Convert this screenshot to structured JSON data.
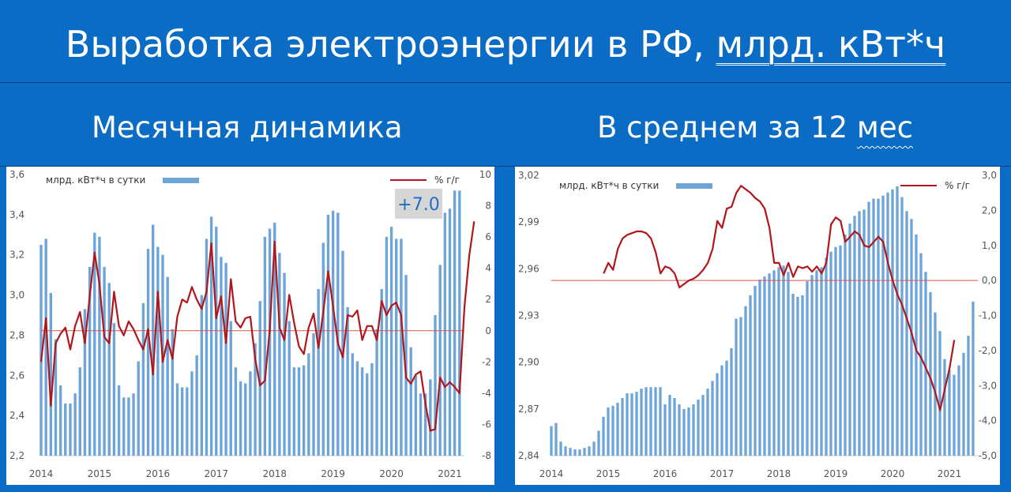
{
  "header": {
    "title_main": "Выработка электроэнергии в РФ, ",
    "title_units": "млрд. кВт*ч"
  },
  "subtitles": {
    "left": "Месячная динамика",
    "right_prefix": "В среднем за 12 ",
    "right_word": "мес"
  },
  "colors": {
    "background": "#0a6cc4",
    "bars": "#6fa4d6",
    "line": "#b0161c",
    "zero_line": "#d9534f",
    "badge_bg": "#d6d6d6",
    "badge_text": "#1f6fc2"
  },
  "chart_data": [
    {
      "type": "bar",
      "bar_legend": "млрд. кВт*ч в сутки",
      "line_legend": "% г/г",
      "annotation": "+7.0",
      "x_tick_labels": [
        "2014",
        "2015",
        "2016",
        "2017",
        "2018",
        "2019",
        "2020",
        "2021"
      ],
      "x_range": [
        2014.0,
        2021.25
      ],
      "ylim_left": [
        2.2,
        3.6
      ],
      "ylim_right": [
        -8,
        10
      ],
      "y_left_ticks": [
        "2,2",
        "2,4",
        "2,6",
        "2,8",
        "3,0",
        "3,2",
        "3,4",
        "3,6"
      ],
      "y_right_ticks": [
        "-8",
        "-6",
        "-4",
        "-2",
        "0",
        "2",
        "4",
        "6",
        "8",
        "10"
      ],
      "series": [
        {
          "kind": "bar",
          "x_start": 2014.0,
          "x_step": 0.08333,
          "values": [
            3.25,
            3.28,
            3.01,
            2.78,
            2.55,
            2.46,
            2.46,
            2.51,
            2.64,
            2.93,
            3.14,
            3.31,
            3.29,
            3.14,
            3.06,
            2.86,
            2.55,
            2.49,
            2.49,
            2.51,
            2.67,
            2.96,
            3.23,
            3.35,
            3.24,
            3.2,
            3.09,
            2.83,
            2.56,
            2.54,
            2.54,
            2.62,
            2.7,
            3.0,
            3.28,
            3.39,
            3.34,
            3.19,
            3.16,
            2.87,
            2.64,
            2.57,
            2.56,
            2.62,
            2.76,
            2.97,
            3.29,
            3.33,
            3.36,
            3.21,
            3.11,
            2.87,
            2.64,
            2.64,
            2.65,
            2.71,
            2.81,
            3.03,
            3.26,
            3.4,
            3.42,
            3.41,
            3.22,
            2.94,
            2.71,
            2.67,
            2.64,
            2.61,
            2.66,
            2.83,
            3.03,
            3.29,
            3.34,
            3.28,
            3.28,
            3.1,
            2.74,
            2.6,
            2.51,
            2.51,
            2.58,
            2.9,
            3.15,
            3.41,
            3.43,
            3.52,
            3.52
          ]
        },
        {
          "kind": "line",
          "axis": "right",
          "x_start": 2014.0,
          "x_step": 0.08333,
          "values": [
            -2.0,
            0.8,
            -4.8,
            -0.8,
            -0.2,
            0.2,
            -1.2,
            0.3,
            1.2,
            -0.8,
            2.2,
            5.0,
            3.0,
            -0.4,
            -0.8,
            2.5,
            0.3,
            -0.3,
            0.6,
            0.1,
            -0.6,
            -1.2,
            0.1,
            -2.8,
            2.5,
            -2.0,
            -0.6,
            -1.8,
            0.9,
            2.0,
            1.8,
            2.8,
            2.0,
            1.4,
            2.5,
            5.6,
            0.8,
            2.2,
            -0.8,
            3.3,
            0.6,
            0.2,
            0.8,
            0.9,
            -1.8,
            -3.5,
            -3.2,
            0.1,
            5.7,
            0.2,
            -0.6,
            2.3,
            0.5,
            -1.0,
            -1.5,
            0.2,
            1.1,
            -1.1,
            1.2,
            3.8,
            1.6,
            -0.8,
            -1.7,
            1.0,
            0.9,
            1.3,
            -0.6,
            0.3,
            0.3,
            -0.6,
            1.9,
            1.0,
            1.6,
            1.8,
            1.0,
            -3.0,
            -3.4,
            -2.8,
            -2.6,
            -4.7,
            -6.4,
            -6.3,
            -3.0,
            -3.6,
            -3.3,
            -3.6,
            -4.0,
            1.5,
            4.8,
            7.0
          ]
        }
      ]
    },
    {
      "type": "bar",
      "bar_legend": "млрд. кВт*ч в сутки",
      "line_legend": "% г/г",
      "x_tick_labels": [
        "2014",
        "2015",
        "2016",
        "2017",
        "2018",
        "2019",
        "2020",
        "2021"
      ],
      "x_range": [
        2014.0,
        2021.5
      ],
      "ylim_left": [
        2.84,
        3.02
      ],
      "ylim_right": [
        -5.0,
        3.0
      ],
      "y_left_ticks": [
        "2,84",
        "2,87",
        "2,90",
        "2,93",
        "2,96",
        "2,99",
        "3,02"
      ],
      "y_right_ticks": [
        "-5,0",
        "-4,0",
        "-3,0",
        "-2,0",
        "-1,0",
        "0,0",
        "1,0",
        "2,0",
        "3,0"
      ],
      "series": [
        {
          "kind": "bar",
          "x_start": 2014.0,
          "x_step": 0.08333,
          "values": [
            2.859,
            2.861,
            2.849,
            2.846,
            2.845,
            2.844,
            2.844,
            2.845,
            2.846,
            2.849,
            2.856,
            2.865,
            2.871,
            2.872,
            2.874,
            2.877,
            2.88,
            2.88,
            2.881,
            2.883,
            2.884,
            2.884,
            2.884,
            2.884,
            2.873,
            2.879,
            2.877,
            2.873,
            2.87,
            2.871,
            2.873,
            2.876,
            2.879,
            2.883,
            2.888,
            2.893,
            2.898,
            2.901,
            2.909,
            2.928,
            2.929,
            2.936,
            2.943,
            2.949,
            2.953,
            2.955,
            2.957,
            2.959,
            2.961,
            2.962,
            2.958,
            2.944,
            2.942,
            2.943,
            2.952,
            2.956,
            2.959,
            2.961,
            2.967,
            2.971,
            2.974,
            2.975,
            2.982,
            2.989,
            2.994,
            2.997,
            2.998,
            3.003,
            3.005,
            3.005,
            3.007,
            3.009,
            3.011,
            3.013,
            3.006,
            2.997,
            2.992,
            2.982,
            2.97,
            2.958,
            2.945,
            2.932,
            2.92,
            2.902,
            2.895,
            2.892,
            2.898,
            2.906,
            2.917,
            2.939
          ]
        },
        {
          "kind": "line",
          "axis": "right",
          "x_start": 2014.92,
          "x_step": 0.08333,
          "values": [
            0.2,
            0.5,
            0.3,
            0.9,
            1.2,
            1.3,
            1.35,
            1.4,
            1.4,
            1.35,
            1.2,
            0.8,
            0.2,
            0.4,
            0.35,
            0.2,
            -0.2,
            -0.1,
            0.0,
            0.05,
            0.15,
            0.3,
            0.5,
            0.9,
            1.7,
            1.5,
            2.05,
            2.1,
            2.5,
            2.7,
            2.6,
            2.5,
            2.35,
            2.25,
            2.05,
            1.5,
            0.5,
            0.5,
            0.15,
            0.5,
            0.1,
            0.4,
            0.35,
            0.4,
            0.25,
            0.4,
            0.2,
            0.5,
            1.6,
            1.8,
            1.7,
            1.1,
            1.25,
            1.4,
            1.3,
            1.0,
            0.95,
            1.1,
            1.25,
            1.1,
            0.5,
            0.0,
            -0.4,
            -0.7,
            -1.1,
            -1.5,
            -2.0,
            -2.2,
            -2.5,
            -2.8,
            -3.2,
            -3.7,
            -3.1,
            -2.5,
            -1.7
          ]
        }
      ]
    }
  ]
}
